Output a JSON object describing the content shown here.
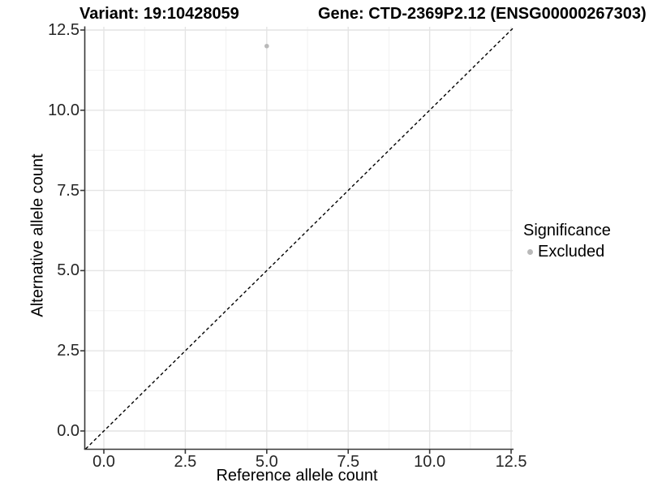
{
  "chart_data": {
    "type": "scatter",
    "titles": {
      "left": "Variant: 19:10428059",
      "right": "Gene: CTD-2369P2.12 (ENSG00000267303)"
    },
    "xlabel": "Reference allele count",
    "ylabel": "Alternative allele count",
    "xlim": [
      -0.573,
      12.549
    ],
    "ylim": [
      -0.557,
      12.601
    ],
    "tick_values": [
      0,
      2.5,
      5,
      7.5,
      10,
      12.5
    ],
    "tick_labels": [
      "0.0",
      "2.5",
      "5.0",
      "7.5",
      "10.0",
      "12.5"
    ],
    "minor_tick_values": [
      1.25,
      3.75,
      6.25,
      8.75,
      11.25
    ],
    "grid": true,
    "points": [
      {
        "x": 5,
        "y": 12,
        "series": "Excluded"
      }
    ],
    "reference_line": {
      "slope": 1,
      "intercept": 0,
      "linetype": "dashed",
      "color": "#000000"
    },
    "legend": {
      "title": "Significance",
      "position": "right",
      "items": [
        {
          "label": "Excluded",
          "color": "#b9b9b9"
        }
      ]
    },
    "colors": {
      "point": "#b9b9b9",
      "grid_major": "#e4e4e4",
      "grid_minor": "#efefef",
      "axis_line": "#383838",
      "tick_text": "#262626"
    }
  }
}
